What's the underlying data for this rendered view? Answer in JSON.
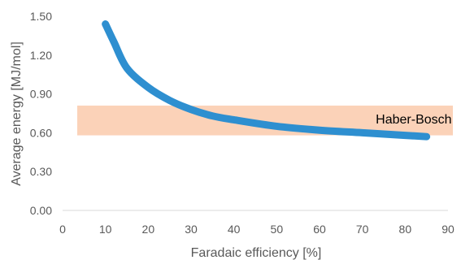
{
  "chart_data": {
    "type": "line",
    "title": "",
    "xlabel": "Faradaic efficiency [%]",
    "ylabel": "Average energy [MJ/mol]",
    "xlim": [
      0,
      90
    ],
    "ylim": [
      0,
      1.5
    ],
    "x_ticks": [
      0,
      10,
      20,
      30,
      40,
      50,
      60,
      70,
      80,
      90
    ],
    "x_tick_labels": [
      "0",
      "10",
      "20",
      "30",
      "40",
      "50",
      "60",
      "70",
      "80",
      "90"
    ],
    "y_ticks": [
      0,
      0.3,
      0.6,
      0.9,
      1.2,
      1.5
    ],
    "y_tick_labels": [
      "0.00",
      "0.30",
      "0.60",
      "0.90",
      "1.20",
      "1.50"
    ],
    "grid": false,
    "series": [
      {
        "color": "#2e8fd0",
        "x": [
          10,
          12,
          15,
          20,
          25,
          30,
          35,
          40,
          50,
          60,
          70,
          80,
          85
        ],
        "y": [
          1.44,
          1.3,
          1.1,
          0.95,
          0.85,
          0.78,
          0.73,
          0.7,
          0.65,
          0.62,
          0.6,
          0.58,
          0.57
        ]
      }
    ],
    "annotations": [
      {
        "type": "band",
        "label": "Haber-Bosch",
        "y_range": [
          0.58,
          0.81
        ],
        "x_range": [
          0,
          90
        ],
        "color": "#fbd2b8"
      }
    ]
  }
}
